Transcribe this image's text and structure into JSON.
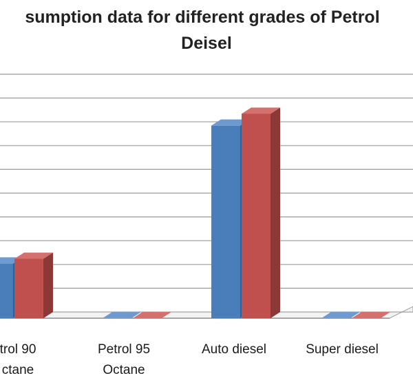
{
  "chart_data": {
    "type": "bar",
    "title_lines": [
      "sumption data for different grades of Petrol",
      "Deisel"
    ],
    "categories": [
      [
        "trol 90",
        "ctane"
      ],
      [
        "Petrol 95",
        "Octane"
      ],
      [
        "Auto diesel"
      ],
      [
        "Super diesel"
      ]
    ],
    "series": [
      {
        "values": [
          23,
          0,
          81,
          0
        ]
      },
      {
        "values": [
          25,
          0,
          86,
          0
        ]
      }
    ],
    "ylim": [
      0,
      100
    ],
    "grid": true,
    "style": "3d-clustered-column",
    "colors": {
      "series": [
        "#4a7ebb",
        "#c0504d"
      ],
      "series_side": [
        "#365f92",
        "#8c3836"
      ],
      "series_top": [
        "#6f9ad0",
        "#d4716e"
      ],
      "grid": "#9a9a9a",
      "wall": "#ffffff"
    }
  }
}
